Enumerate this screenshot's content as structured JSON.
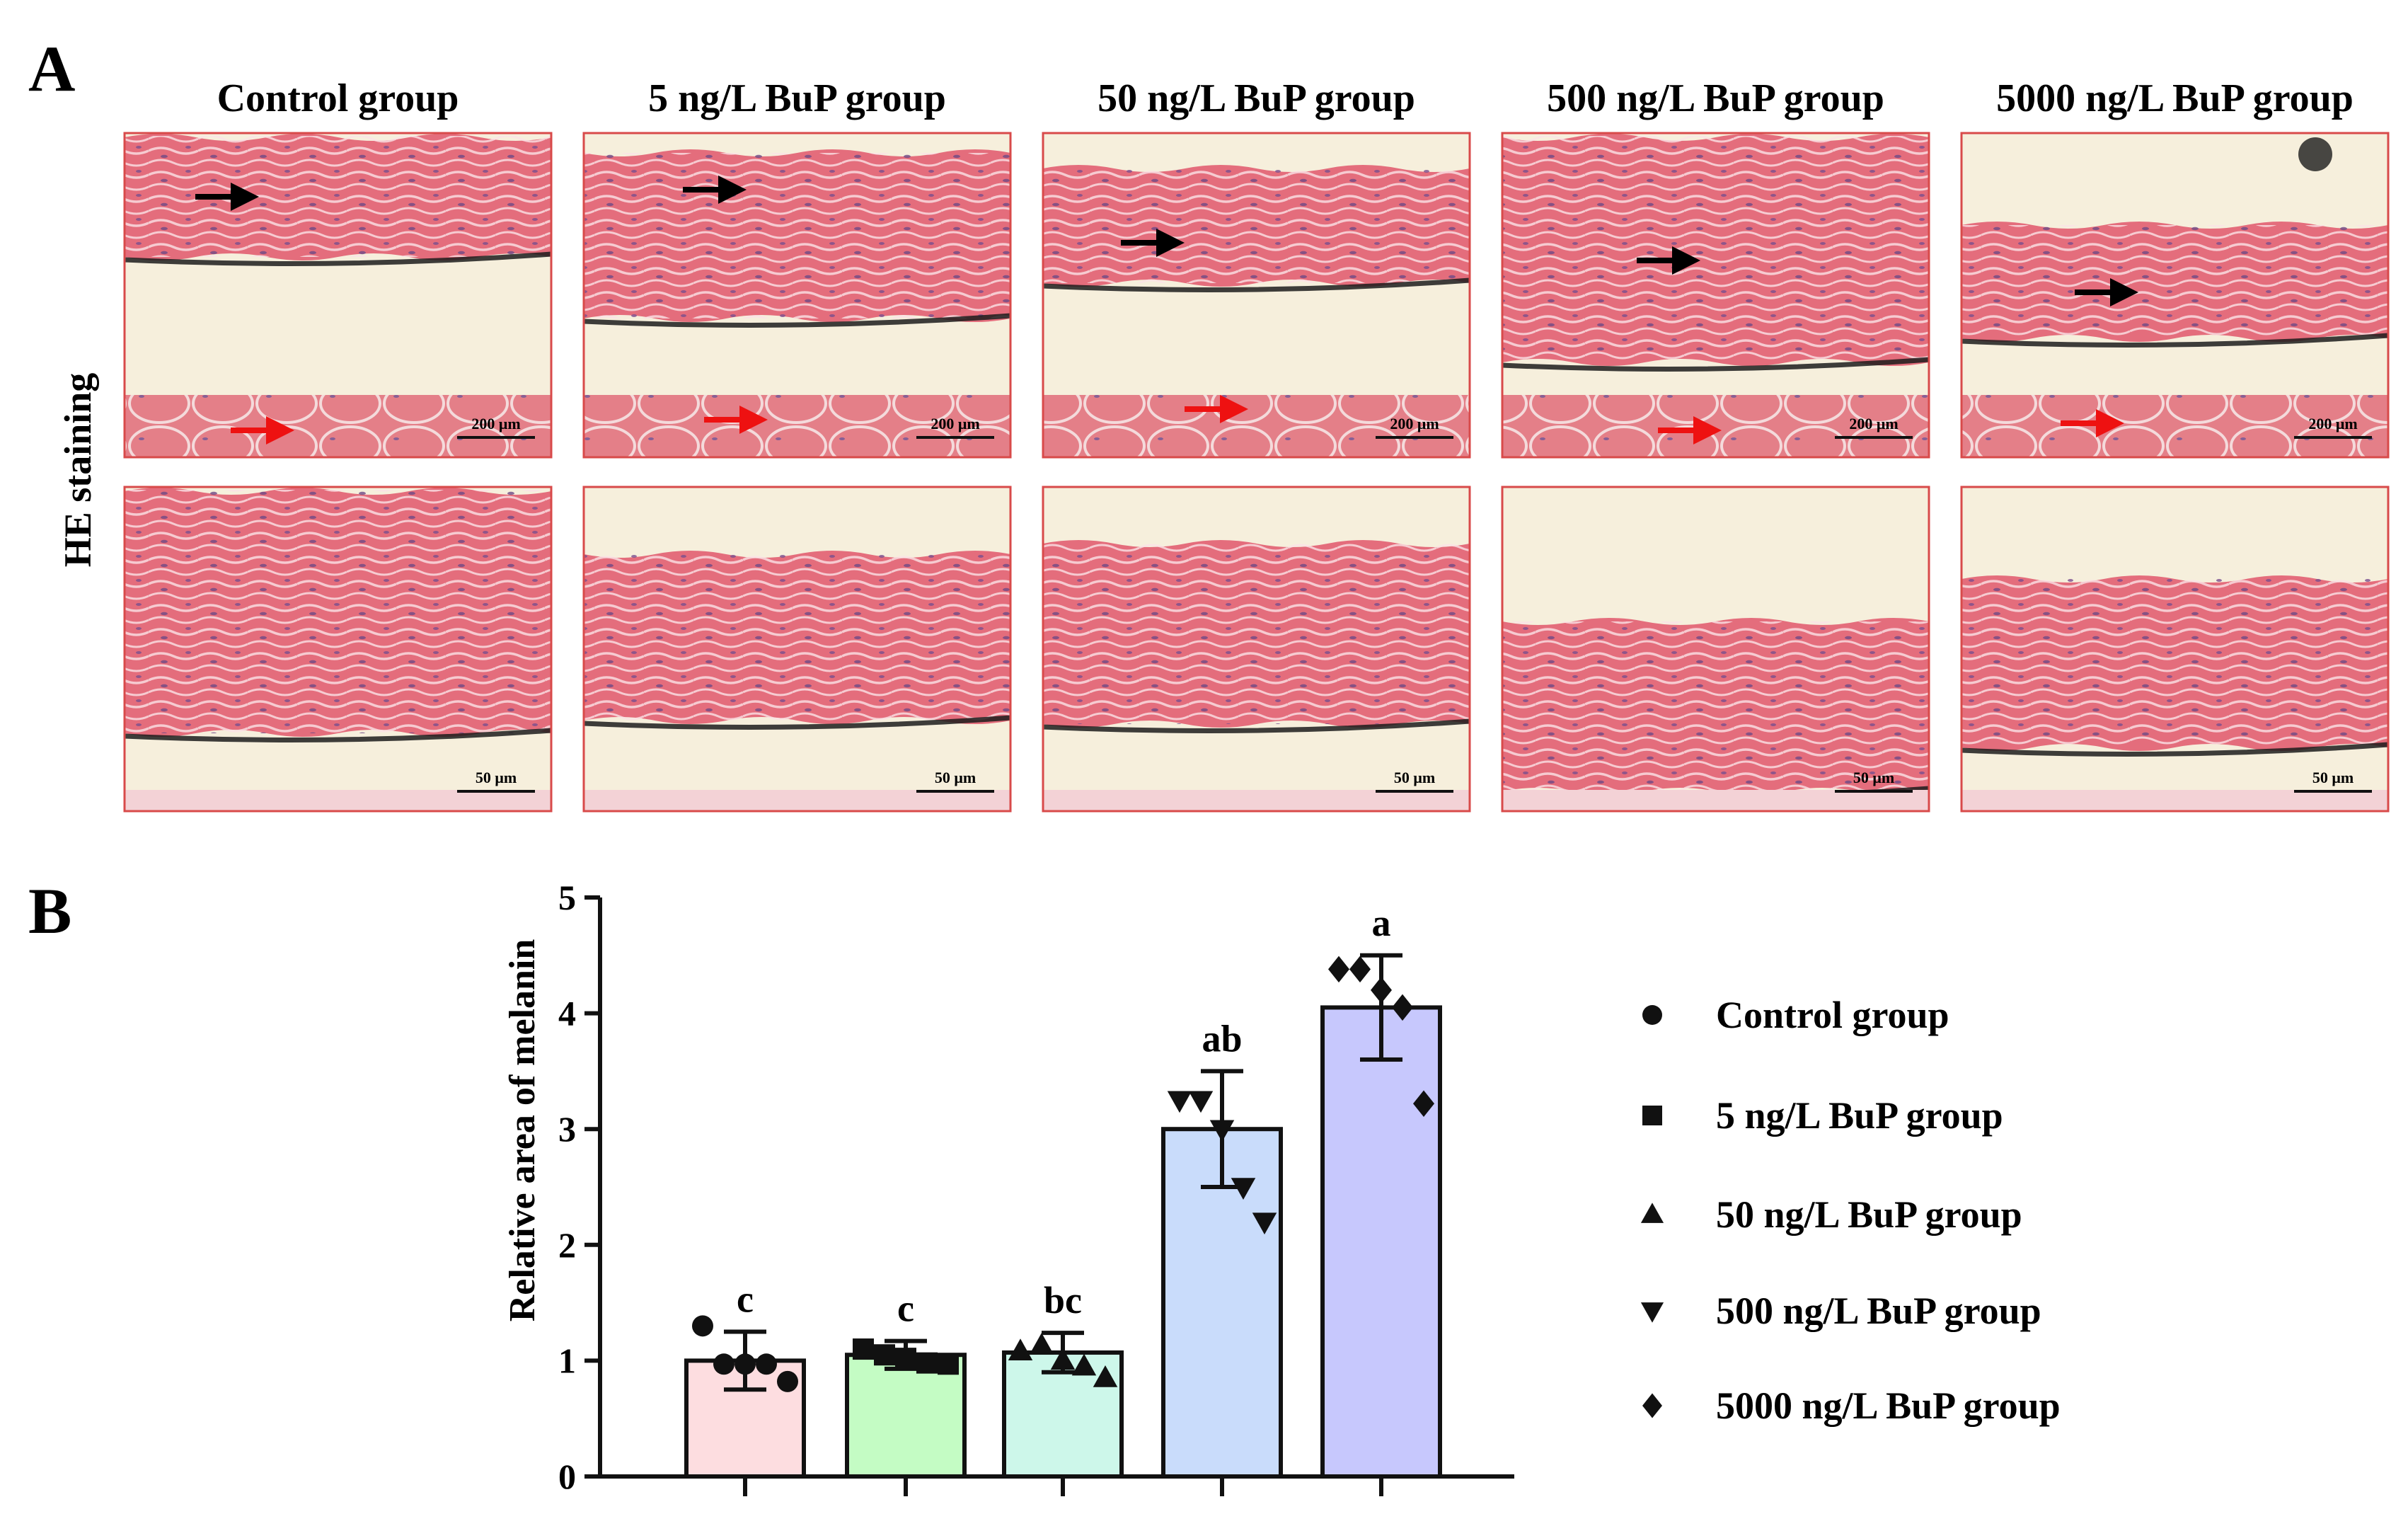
{
  "panel_a": {
    "letter": "A",
    "row_label": "HE staining",
    "columns": [
      "Control group",
      "5 ng/L BuP group",
      "50 ng/L BuP group",
      "500 ng/L BuP group",
      "5000 ng/L BuP group"
    ],
    "top_row_scale": "200 μm",
    "bottom_row_scale": "50 μm",
    "colors": {
      "tissue": "#e46d7c",
      "background": "#f6efdc",
      "frame": "#d84a4a",
      "melanin": "#1c1c1c",
      "black_arrow": "#000000",
      "red_arrow": "#ee1111"
    }
  },
  "panel_b": {
    "letter": "B"
  },
  "chart_data": {
    "type": "bar",
    "ylabel": "Relative area of melanin",
    "ylim": [
      0,
      5
    ],
    "yticks": [
      0,
      1,
      2,
      3,
      4,
      5
    ],
    "categories": [
      "Control group",
      "5 ng/L BuP group",
      "50 ng/L BuP group",
      "500 ng/L BuP group",
      "5000 ng/L BuP group"
    ],
    "values": [
      1.0,
      1.05,
      1.07,
      3.0,
      4.05
    ],
    "errors": [
      0.25,
      0.12,
      0.17,
      0.5,
      0.45
    ],
    "significance": [
      "c",
      "c",
      "bc",
      "ab",
      "a"
    ],
    "bar_colors": [
      "#fddde0",
      "#c4fcc4",
      "#cdf7ea",
      "#c9dcfb",
      "#c7c8fd"
    ],
    "markers": [
      "circle",
      "square",
      "triangle-up",
      "triangle-down",
      "diamond"
    ],
    "points": [
      [
        1.3,
        0.97,
        0.97,
        0.97,
        0.82
      ],
      [
        1.1,
        1.05,
        1.02,
        0.98,
        0.97
      ],
      [
        1.08,
        1.13,
        1.0,
        0.95,
        0.85
      ],
      [
        3.25,
        3.25,
        3.0,
        2.5,
        2.2
      ],
      [
        4.38,
        4.38,
        4.2,
        4.05,
        3.22
      ]
    ],
    "legend": [
      "Control group",
      "5 ng/L BuP group",
      "50 ng/L BuP group",
      "500 ng/L BuP group",
      "5000 ng/L BuP group"
    ],
    "legend_position": "right"
  }
}
